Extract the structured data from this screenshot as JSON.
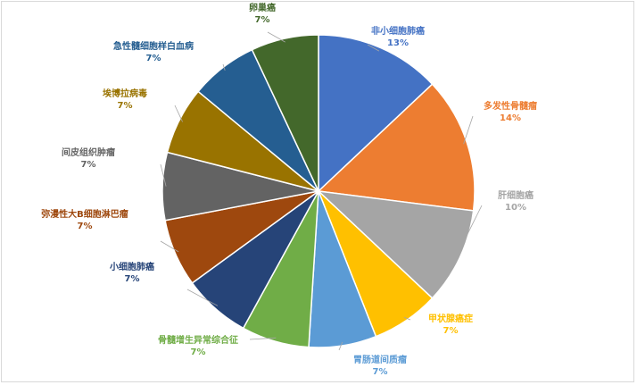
{
  "chart_data": {
    "type": "pie",
    "title": "",
    "slices": [
      {
        "label": "非小细胞肺癌",
        "value": 13,
        "value_label": "13%",
        "color": "#4472C4"
      },
      {
        "label": "多发性骨髓瘤",
        "value": 14,
        "value_label": "14%",
        "color": "#ED7D31"
      },
      {
        "label": "肝细胞癌",
        "value": 10,
        "value_label": "10%",
        "color": "#A5A5A5"
      },
      {
        "label": "甲状腺癌症",
        "value": 7,
        "value_label": "7%",
        "color": "#FFC000"
      },
      {
        "label": "胃肠道间质瘤",
        "value": 7,
        "value_label": "7%",
        "color": "#5B9BD5"
      },
      {
        "label": "骨髓增生异常综合征",
        "value": 7,
        "value_label": "7%",
        "color": "#70AD47"
      },
      {
        "label": "小细胞肺癌",
        "value": 7,
        "value_label": "7%",
        "color": "#264478"
      },
      {
        "label": "弥漫性大B细胞淋巴瘤",
        "value": 7,
        "value_label": "7%",
        "color": "#9E480E"
      },
      {
        "label": "间皮组织肿瘤",
        "value": 7,
        "value_label": "7%",
        "color": "#636363"
      },
      {
        "label": "埃博拉病毒",
        "value": 7,
        "value_label": "7%",
        "color": "#997300"
      },
      {
        "label": "急性髓细胞样白血病",
        "value": 7,
        "value_label": "7%",
        "color": "#255E91"
      },
      {
        "label": "卵巢癌",
        "value": 7,
        "value_label": "7%",
        "color": "#43682B"
      }
    ]
  }
}
